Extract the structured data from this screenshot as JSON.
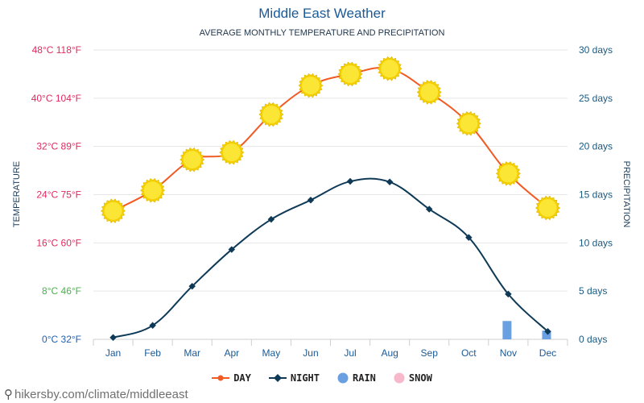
{
  "title": "Middle East Weather",
  "subtitle": "AVERAGE MONTHLY TEMPERATURE AND PRECIPITATION",
  "footer_url": "hikersby.com/climate/middleeast",
  "legend": [
    {
      "key": "day",
      "label": "DAY",
      "color": "#f15a22"
    },
    {
      "key": "night",
      "label": "NIGHT",
      "color": "#0f3a57"
    },
    {
      "key": "rain",
      "label": "RAIN",
      "color": "#6aa0e2"
    },
    {
      "key": "snow",
      "label": "SNOW",
      "color": "#f7b8cc"
    }
  ],
  "chart_data": {
    "type": "line",
    "title": "Middle East Weather",
    "subtitle": "AVERAGE MONTHLY TEMPERATURE AND PRECIPITATION",
    "categories": [
      "Jan",
      "Feb",
      "Mar",
      "Apr",
      "May",
      "Jun",
      "Jul",
      "Aug",
      "Sep",
      "Oct",
      "Nov",
      "Dec"
    ],
    "left_axis": {
      "label": "TEMPERATURE",
      "unit": "°C",
      "range": [
        0,
        48
      ],
      "ticks": [
        {
          "value": 0,
          "label": "0°C 32°F",
          "color": "#1f60b0"
        },
        {
          "value": 8,
          "label": "8°C 46°F",
          "color": "#4caf50"
        },
        {
          "value": 16,
          "label": "16°C 60°F",
          "color": "#e02a5f"
        },
        {
          "value": 24,
          "label": "24°C 75°F",
          "color": "#e02a5f"
        },
        {
          "value": 32,
          "label": "32°C 89°F",
          "color": "#e02a5f"
        },
        {
          "value": 40,
          "label": "40°C 104°F",
          "color": "#e02a5f"
        },
        {
          "value": 48,
          "label": "48°C 118°F",
          "color": "#e02a5f"
        }
      ]
    },
    "right_axis": {
      "label": "PRECIPITATION",
      "unit": "days",
      "range": [
        0,
        30
      ],
      "ticks": [
        {
          "value": 0,
          "label": "0 days"
        },
        {
          "value": 5,
          "label": "5 days"
        },
        {
          "value": 10,
          "label": "10 days"
        },
        {
          "value": 15,
          "label": "15 days"
        },
        {
          "value": 20,
          "label": "20 days"
        },
        {
          "value": 25,
          "label": "25 days"
        },
        {
          "value": 30,
          "label": "30 days"
        }
      ]
    },
    "series": [
      {
        "name": "DAY",
        "axis": "left",
        "unit": "°C",
        "color": "#f15a22",
        "values": [
          21.3,
          24.7,
          29.8,
          31.0,
          37.3,
          42.1,
          44.0,
          44.9,
          41.0,
          35.8,
          27.5,
          21.8
        ]
      },
      {
        "name": "NIGHT",
        "axis": "left",
        "unit": "°C",
        "color": "#0f3a57",
        "values": [
          0.3,
          2.3,
          8.8,
          14.9,
          19.9,
          23.1,
          26.2,
          26.1,
          21.6,
          16.9,
          7.5,
          1.3
        ]
      },
      {
        "name": "RAIN",
        "axis": "right",
        "unit": "days",
        "color": "#6aa0e2",
        "values": [
          0,
          0,
          0,
          0,
          0,
          0,
          0,
          0,
          0,
          0,
          1.9,
          0.9
        ]
      },
      {
        "name": "SNOW",
        "axis": "right",
        "unit": "days",
        "color": "#f7b8cc",
        "values": [
          0,
          0,
          0,
          0,
          0,
          0,
          0,
          0,
          0,
          0,
          0,
          0
        ]
      }
    ]
  }
}
